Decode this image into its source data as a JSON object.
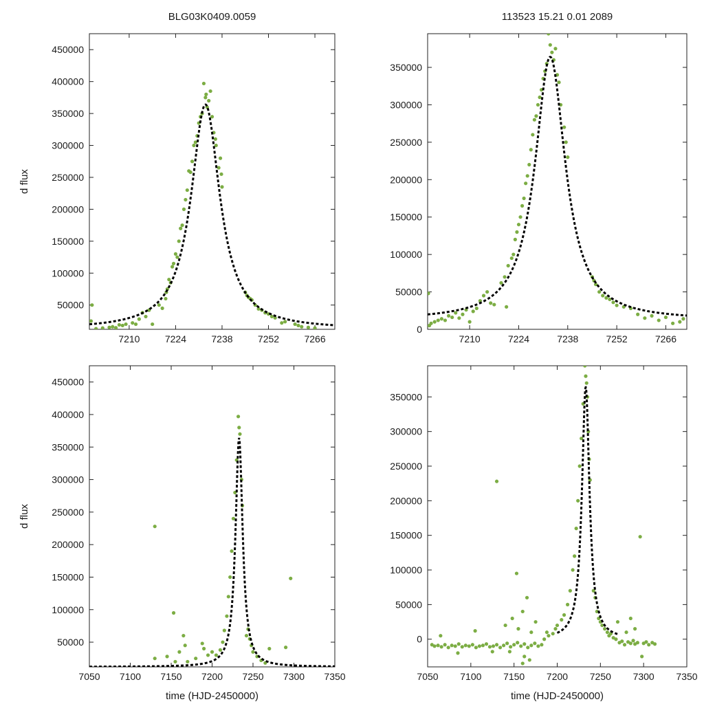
{
  "colors": {
    "points": "#7cad44",
    "fit": "#000000"
  },
  "chart_data": [
    {
      "id": "top-left",
      "type": "scatter",
      "title": "BLG03K0409.0059",
      "xlabel": "",
      "ylabel": "d flux",
      "xlim": [
        7198,
        7272
      ],
      "ylim": [
        12000,
        475000
      ],
      "xticks": [
        7210,
        7224,
        7238,
        7252,
        7266
      ],
      "yticks": [
        50000,
        100000,
        150000,
        200000,
        250000,
        300000,
        350000,
        400000,
        450000
      ],
      "model": {
        "t0": 7233,
        "peak": 364000,
        "tau": 5.3,
        "base": 12000
      },
      "points": [
        [
          7198.5,
          25000
        ],
        [
          7198.8,
          50000
        ],
        [
          7200,
          13000
        ],
        [
          7202,
          14000
        ],
        [
          7204,
          15000
        ],
        [
          7205,
          16000
        ],
        [
          7206,
          14500
        ],
        [
          7207,
          19000
        ],
        [
          7208,
          18000
        ],
        [
          7209,
          20000
        ],
        [
          7211,
          22000
        ],
        [
          7212,
          20000
        ],
        [
          7213,
          28000
        ],
        [
          7214,
          38000
        ],
        [
          7215,
          32000
        ],
        [
          7216,
          42000
        ],
        [
          7217,
          20000
        ],
        [
          7219,
          50000
        ],
        [
          7220,
          45000
        ],
        [
          7221,
          60000
        ],
        [
          7221.2,
          70000
        ],
        [
          7221.5,
          75000
        ],
        [
          7222,
          90000
        ],
        [
          7222.5,
          85000
        ],
        [
          7223,
          110000
        ],
        [
          7223.4,
          115000
        ],
        [
          7224,
          130000
        ],
        [
          7224.5,
          125000
        ],
        [
          7225,
          150000
        ],
        [
          7225.5,
          170000
        ],
        [
          7226,
          175000
        ],
        [
          7226.5,
          200000
        ],
        [
          7227,
          215000
        ],
        [
          7227.5,
          230000
        ],
        [
          7228,
          260000
        ],
        [
          7228.5,
          258000
        ],
        [
          7229,
          275000
        ],
        [
          7229.5,
          300000
        ],
        [
          7230,
          305000
        ],
        [
          7230.5,
          315000
        ],
        [
          7231,
          335000
        ],
        [
          7231.5,
          345000
        ],
        [
          7232,
          350000
        ],
        [
          7232.5,
          397000
        ],
        [
          7233,
          375000
        ],
        [
          7233.2,
          380000
        ],
        [
          7233.5,
          360000
        ],
        [
          7234,
          370000
        ],
        [
          7234.5,
          385000
        ],
        [
          7235,
          345000
        ],
        [
          7235.5,
          320000
        ],
        [
          7236,
          310000
        ],
        [
          7236.2,
          300000
        ],
        [
          7237,
          265000
        ],
        [
          7237.5,
          280000
        ],
        [
          7237.8,
          255000
        ],
        [
          7238,
          235000
        ],
        [
          7245,
          70000
        ],
        [
          7245.5,
          65000
        ],
        [
          7246,
          62000
        ],
        [
          7246.5,
          60000
        ],
        [
          7247,
          58000
        ],
        [
          7248,
          50000
        ],
        [
          7249,
          44000
        ],
        [
          7250,
          42000
        ],
        [
          7251,
          38000
        ],
        [
          7252,
          36000
        ],
        [
          7253,
          32000
        ],
        [
          7254,
          30000
        ],
        [
          7256,
          22000
        ],
        [
          7257,
          24000
        ],
        [
          7260,
          20000
        ],
        [
          7261,
          18000
        ],
        [
          7262,
          16000
        ],
        [
          7264,
          15000
        ],
        [
          7266,
          14000
        ]
      ]
    },
    {
      "id": "top-right",
      "type": "scatter",
      "title": "113523   15.21   0.01   2089",
      "xlabel": "",
      "ylabel": "",
      "xlim": [
        7198,
        7272
      ],
      "ylim": [
        0,
        395000
      ],
      "xticks": [
        7210,
        7224,
        7238,
        7252,
        7266
      ],
      "yticks": [
        0,
        50000,
        100000,
        150000,
        200000,
        250000,
        300000,
        350000
      ],
      "model": {
        "t0": 7233,
        "peak": 364000,
        "tau": 5.3,
        "base": 12000
      },
      "points": [
        [
          7198.2,
          48000
        ],
        [
          7198.5,
          5000
        ],
        [
          7199,
          8000
        ],
        [
          7200,
          10000
        ],
        [
          7201,
          12000
        ],
        [
          7202,
          14000
        ],
        [
          7203,
          12000
        ],
        [
          7204,
          18000
        ],
        [
          7205,
          16000
        ],
        [
          7206,
          22000
        ],
        [
          7207,
          15000
        ],
        [
          7208,
          20000
        ],
        [
          7209,
          26000
        ],
        [
          7210,
          10000
        ],
        [
          7211,
          24000
        ],
        [
          7212,
          28000
        ],
        [
          7213,
          38000
        ],
        [
          7214,
          45000
        ],
        [
          7215,
          50000
        ],
        [
          7216,
          35000
        ],
        [
          7217,
          33000
        ],
        [
          7219,
          62000
        ],
        [
          7220,
          70000
        ],
        [
          7220.5,
          30000
        ],
        [
          7221,
          85000
        ],
        [
          7222,
          95000
        ],
        [
          7222.5,
          100000
        ],
        [
          7223,
          120000
        ],
        [
          7223.5,
          130000
        ],
        [
          7224,
          140000
        ],
        [
          7224.5,
          150000
        ],
        [
          7225,
          165000
        ],
        [
          7225.5,
          175000
        ],
        [
          7226,
          195000
        ],
        [
          7226.5,
          205000
        ],
        [
          7227,
          220000
        ],
        [
          7227.5,
          240000
        ],
        [
          7228,
          260000
        ],
        [
          7228.5,
          280000
        ],
        [
          7229,
          285000
        ],
        [
          7229.5,
          300000
        ],
        [
          7230,
          310000
        ],
        [
          7230.5,
          320000
        ],
        [
          7231,
          335000
        ],
        [
          7231.5,
          345000
        ],
        [
          7232,
          355000
        ],
        [
          7232.5,
          395000
        ],
        [
          7233,
          380000
        ],
        [
          7233.5,
          370000
        ],
        [
          7234,
          360000
        ],
        [
          7234.5,
          375000
        ],
        [
          7235,
          340000
        ],
        [
          7235.5,
          330000
        ],
        [
          7236,
          300000
        ],
        [
          7237,
          270000
        ],
        [
          7237.5,
          250000
        ],
        [
          7238,
          230000
        ],
        [
          7245,
          70000
        ],
        [
          7245.5,
          65000
        ],
        [
          7246,
          60000
        ],
        [
          7247,
          50000
        ],
        [
          7248,
          45000
        ],
        [
          7249,
          42000
        ],
        [
          7250,
          40000
        ],
        [
          7251,
          36000
        ],
        [
          7252,
          32000
        ],
        [
          7254,
          30000
        ],
        [
          7256,
          28000
        ],
        [
          7258,
          20000
        ],
        [
          7260,
          15000
        ],
        [
          7262,
          18000
        ],
        [
          7264,
          12000
        ],
        [
          7266,
          16000
        ],
        [
          7268,
          8000
        ],
        [
          7270,
          10000
        ],
        [
          7271,
          14000
        ]
      ]
    },
    {
      "id": "bottom-left",
      "type": "scatter",
      "title": "",
      "xlabel": "time (HJD-2450000)",
      "ylabel": "d flux",
      "xlim": [
        7050,
        7350
      ],
      "ylim": [
        12000,
        475000
      ],
      "xticks": [
        7050,
        7100,
        7150,
        7200,
        7250,
        7300,
        7350
      ],
      "yticks": [
        50000,
        100000,
        150000,
        200000,
        250000,
        300000,
        350000,
        400000,
        450000
      ],
      "model": {
        "t0": 7233,
        "peak": 364000,
        "tau": 5.3,
        "base": 12000
      },
      "points": [
        [
          7130,
          228000
        ],
        [
          7153,
          95000
        ],
        [
          7296,
          148000
        ],
        [
          7130,
          25000
        ],
        [
          7145,
          28000
        ],
        [
          7155,
          20000
        ],
        [
          7160,
          35000
        ],
        [
          7165,
          60000
        ],
        [
          7167,
          45000
        ],
        [
          7170,
          20000
        ],
        [
          7180,
          25000
        ],
        [
          7188,
          48000
        ],
        [
          7190,
          40000
        ],
        [
          7195,
          30000
        ],
        [
          7200,
          35000
        ],
        [
          7205,
          30000
        ],
        [
          7210,
          38000
        ],
        [
          7213,
          50000
        ],
        [
          7215,
          68000
        ],
        [
          7218,
          90000
        ],
        [
          7220,
          120000
        ],
        [
          7222,
          150000
        ],
        [
          7224,
          190000
        ],
        [
          7226,
          240000
        ],
        [
          7228,
          280000
        ],
        [
          7230,
          330000
        ],
        [
          7232,
          397000
        ],
        [
          7233,
          380000
        ],
        [
          7234,
          370000
        ],
        [
          7236,
          300000
        ],
        [
          7237,
          260000
        ],
        [
          7242,
          60000
        ],
        [
          7244,
          70000
        ],
        [
          7246,
          55000
        ],
        [
          7248,
          45000
        ],
        [
          7250,
          35000
        ],
        [
          7255,
          28000
        ],
        [
          7260,
          22000
        ],
        [
          7265,
          18000
        ],
        [
          7270,
          40000
        ],
        [
          7290,
          42000
        ]
      ]
    },
    {
      "id": "bottom-right",
      "type": "scatter",
      "title": "",
      "xlabel": "time (HJD-2450000)",
      "ylabel": "",
      "xlim": [
        7050,
        7350
      ],
      "ylim": [
        -40000,
        395000
      ],
      "xticks": [
        7050,
        7100,
        7150,
        7200,
        7250,
        7300,
        7350
      ],
      "yticks": [
        0,
        50000,
        100000,
        150000,
        200000,
        250000,
        300000,
        350000
      ],
      "model": {
        "t0": 7233,
        "peak": 364000,
        "tau": 5.3,
        "base": 0,
        "start": 7200,
        "end": 7270
      },
      "points": [
        [
          7055,
          -8000
        ],
        [
          7058,
          -10000
        ],
        [
          7062,
          -9000
        ],
        [
          7066,
          -11000
        ],
        [
          7070,
          -8000
        ],
        [
          7074,
          -12000
        ],
        [
          7078,
          -9000
        ],
        [
          7082,
          -10000
        ],
        [
          7086,
          -7000
        ],
        [
          7090,
          -11000
        ],
        [
          7094,
          -9000
        ],
        [
          7098,
          -10000
        ],
        [
          7102,
          -8000
        ],
        [
          7106,
          -12000
        ],
        [
          7110,
          -10000
        ],
        [
          7114,
          -9000
        ],
        [
          7118,
          -7000
        ],
        [
          7122,
          -11000
        ],
        [
          7126,
          -10000
        ],
        [
          7130,
          -8000
        ],
        [
          7134,
          -12000
        ],
        [
          7138,
          -9000
        ],
        [
          7142,
          -6000
        ],
        [
          7146,
          -11000
        ],
        [
          7150,
          -8000
        ],
        [
          7154,
          -5000
        ],
        [
          7158,
          -10000
        ],
        [
          7162,
          -7000
        ],
        [
          7166,
          -12000
        ],
        [
          7170,
          -9000
        ],
        [
          7174,
          -6000
        ],
        [
          7178,
          -10000
        ],
        [
          7182,
          -8000
        ],
        [
          7065,
          5000
        ],
        [
          7085,
          -20000
        ],
        [
          7105,
          12000
        ],
        [
          7125,
          -18000
        ],
        [
          7130,
          228000
        ],
        [
          7153,
          95000
        ],
        [
          7140,
          20000
        ],
        [
          7148,
          30000
        ],
        [
          7155,
          15000
        ],
        [
          7160,
          40000
        ],
        [
          7162,
          -25000
        ],
        [
          7165,
          60000
        ],
        [
          7168,
          -30000
        ],
        [
          7170,
          10000
        ],
        [
          7175,
          25000
        ],
        [
          7160,
          -35000
        ],
        [
          7145,
          -18000
        ],
        [
          7185,
          0
        ],
        [
          7188,
          10000
        ],
        [
          7190,
          5000
        ],
        [
          7195,
          8000
        ],
        [
          7198,
          15000
        ],
        [
          7200,
          20000
        ],
        [
          7205,
          28000
        ],
        [
          7208,
          35000
        ],
        [
          7212,
          50000
        ],
        [
          7215,
          70000
        ],
        [
          7218,
          100000
        ],
        [
          7220,
          120000
        ],
        [
          7222,
          160000
        ],
        [
          7224,
          200000
        ],
        [
          7226,
          250000
        ],
        [
          7228,
          290000
        ],
        [
          7230,
          340000
        ],
        [
          7232,
          395000
        ],
        [
          7233,
          380000
        ],
        [
          7234,
          370000
        ],
        [
          7235,
          350000
        ],
        [
          7236,
          300000
        ],
        [
          7237,
          260000
        ],
        [
          7238,
          230000
        ],
        [
          7242,
          70000
        ],
        [
          7244,
          60000
        ],
        [
          7246,
          40000
        ],
        [
          7248,
          30000
        ],
        [
          7250,
          25000
        ],
        [
          7252,
          20000
        ],
        [
          7255,
          15000
        ],
        [
          7258,
          10000
        ],
        [
          7260,
          5000
        ],
        [
          7262,
          8000
        ],
        [
          7265,
          2000
        ],
        [
          7268,
          0
        ],
        [
          7272,
          -5000
        ],
        [
          7275,
          -3000
        ],
        [
          7278,
          -8000
        ],
        [
          7282,
          -4000
        ],
        [
          7285,
          -6000
        ],
        [
          7288,
          -2000
        ],
        [
          7290,
          -7000
        ],
        [
          7293,
          -5000
        ],
        [
          7296,
          148000
        ],
        [
          7298,
          -25000
        ],
        [
          7300,
          -6000
        ],
        [
          7303,
          -4000
        ],
        [
          7306,
          -8000
        ],
        [
          7310,
          -5000
        ],
        [
          7313,
          -7000
        ],
        [
          7270,
          25000
        ],
        [
          7280,
          10000
        ],
        [
          7285,
          30000
        ],
        [
          7290,
          15000
        ]
      ]
    }
  ]
}
